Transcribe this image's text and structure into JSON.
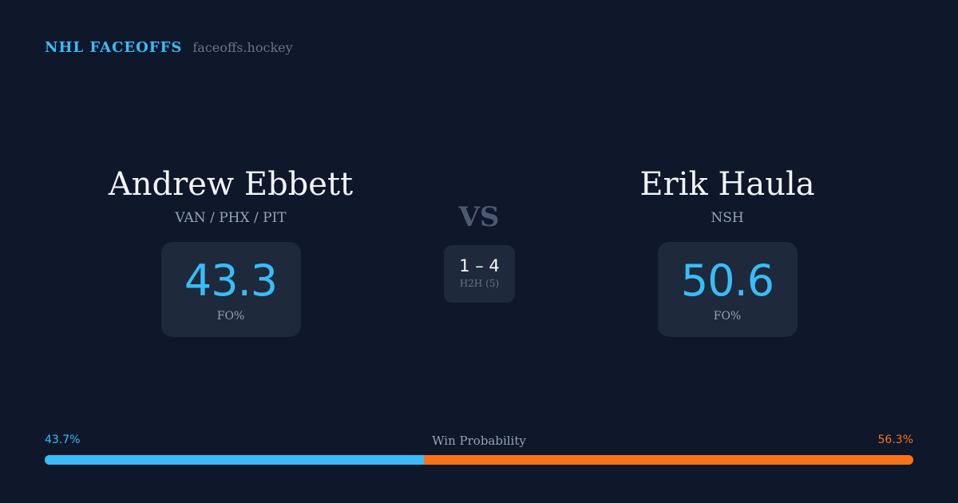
{
  "brand": {
    "title": "NHL FACEOFFS",
    "site": "faceoffs.hockey"
  },
  "left": {
    "name": "Andrew Ebbett",
    "teams": "VAN / PHX / PIT",
    "fo_pct": "43.3",
    "fo_label": "FO%"
  },
  "right": {
    "name": "Erik Haula",
    "teams": "NSH",
    "fo_pct": "50.6",
    "fo_label": "FO%"
  },
  "vs": "VS",
  "h2h": {
    "score": "1 – 4",
    "label": "H2H (5)"
  },
  "probability": {
    "label": "Win Probability",
    "left": "43.7%",
    "right": "56.3%",
    "left_value": 43.7,
    "right_value": 56.3
  },
  "colors": {
    "background": "#0f172a",
    "card": "#1e293b",
    "accent_blue": "#38bdf8",
    "accent_orange": "#f97316"
  }
}
